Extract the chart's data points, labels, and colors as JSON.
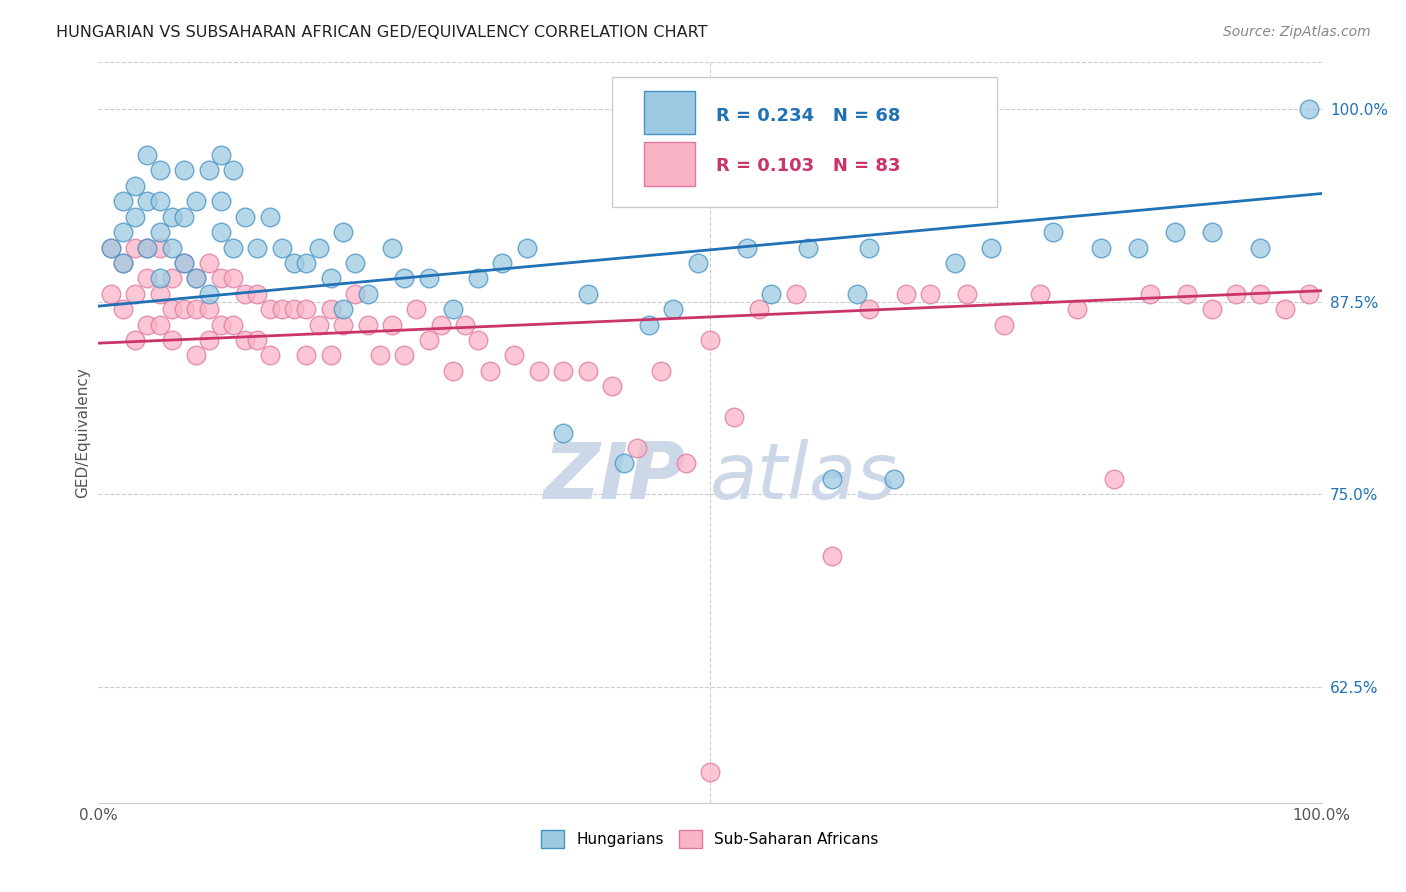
{
  "title": "HUNGARIAN VS SUBSAHARAN AFRICAN GED/EQUIVALENCY CORRELATION CHART",
  "source": "Source: ZipAtlas.com",
  "ylabel": "GED/Equivalency",
  "xlim": [
    0.0,
    1.0
  ],
  "ylim": [
    0.55,
    1.03
  ],
  "yticks": [
    0.625,
    0.75,
    0.875,
    1.0
  ],
  "ytick_labels": [
    "62.5%",
    "75.0%",
    "87.5%",
    "100.0%"
  ],
  "xticks": [
    0.0,
    0.1,
    0.2,
    0.3,
    0.4,
    0.5,
    0.6,
    0.7,
    0.8,
    0.9,
    1.0
  ],
  "xtick_labels": [
    "0.0%",
    "",
    "",
    "",
    "",
    "",
    "",
    "",
    "",
    "",
    "100.0%"
  ],
  "hungarian_color": "#9ecae1",
  "hungarian_edge": "#4292c6",
  "african_color": "#fbb4c6",
  "african_edge": "#de77a2",
  "blue_line_color": "#2171b5",
  "pink_line_color": "#c9346a",
  "watermark_color": "#ccd8e8",
  "R_hungarian": 0.234,
  "N_hungarian": 68,
  "R_african": 0.103,
  "N_african": 83,
  "blue_line_x0": 0.0,
  "blue_line_y0": 0.872,
  "blue_line_x1": 1.0,
  "blue_line_y1": 0.945,
  "pink_line_x0": 0.0,
  "pink_line_y0": 0.848,
  "pink_line_x1": 1.0,
  "pink_line_y1": 0.882,
  "hungarian_x": [
    0.01,
    0.02,
    0.02,
    0.02,
    0.03,
    0.03,
    0.04,
    0.04,
    0.04,
    0.05,
    0.05,
    0.05,
    0.05,
    0.06,
    0.06,
    0.07,
    0.07,
    0.07,
    0.08,
    0.08,
    0.09,
    0.09,
    0.1,
    0.1,
    0.1,
    0.11,
    0.11,
    0.12,
    0.13,
    0.14,
    0.15,
    0.16,
    0.17,
    0.18,
    0.19,
    0.2,
    0.2,
    0.21,
    0.22,
    0.24,
    0.25,
    0.27,
    0.29,
    0.31,
    0.33,
    0.35,
    0.38,
    0.4,
    0.43,
    0.45,
    0.47,
    0.49,
    0.53,
    0.55,
    0.58,
    0.6,
    0.62,
    0.63,
    0.65,
    0.7,
    0.73,
    0.78,
    0.82,
    0.85,
    0.88,
    0.91,
    0.95,
    0.99
  ],
  "hungarian_y": [
    0.91,
    0.94,
    0.92,
    0.9,
    0.95,
    0.93,
    0.97,
    0.94,
    0.91,
    0.96,
    0.94,
    0.92,
    0.89,
    0.93,
    0.91,
    0.96,
    0.93,
    0.9,
    0.94,
    0.89,
    0.96,
    0.88,
    0.97,
    0.94,
    0.92,
    0.96,
    0.91,
    0.93,
    0.91,
    0.93,
    0.91,
    0.9,
    0.9,
    0.91,
    0.89,
    0.92,
    0.87,
    0.9,
    0.88,
    0.91,
    0.89,
    0.89,
    0.87,
    0.89,
    0.9,
    0.91,
    0.79,
    0.88,
    0.77,
    0.86,
    0.87,
    0.9,
    0.91,
    0.88,
    0.91,
    0.76,
    0.88,
    0.91,
    0.76,
    0.9,
    0.91,
    0.92,
    0.91,
    0.91,
    0.92,
    0.92,
    0.91,
    1.0
  ],
  "african_x": [
    0.01,
    0.01,
    0.02,
    0.02,
    0.03,
    0.03,
    0.03,
    0.04,
    0.04,
    0.04,
    0.05,
    0.05,
    0.05,
    0.06,
    0.06,
    0.06,
    0.07,
    0.07,
    0.08,
    0.08,
    0.08,
    0.09,
    0.09,
    0.09,
    0.1,
    0.1,
    0.11,
    0.11,
    0.12,
    0.12,
    0.13,
    0.13,
    0.14,
    0.14,
    0.15,
    0.16,
    0.17,
    0.17,
    0.18,
    0.19,
    0.19,
    0.2,
    0.21,
    0.22,
    0.23,
    0.24,
    0.25,
    0.26,
    0.27,
    0.28,
    0.29,
    0.3,
    0.31,
    0.32,
    0.34,
    0.36,
    0.38,
    0.4,
    0.42,
    0.44,
    0.46,
    0.48,
    0.5,
    0.52,
    0.54,
    0.57,
    0.6,
    0.63,
    0.66,
    0.68,
    0.71,
    0.74,
    0.77,
    0.8,
    0.83,
    0.86,
    0.89,
    0.91,
    0.93,
    0.95,
    0.97,
    0.99,
    0.5
  ],
  "african_y": [
    0.91,
    0.88,
    0.9,
    0.87,
    0.91,
    0.88,
    0.85,
    0.91,
    0.89,
    0.86,
    0.91,
    0.88,
    0.86,
    0.89,
    0.87,
    0.85,
    0.9,
    0.87,
    0.89,
    0.87,
    0.84,
    0.9,
    0.87,
    0.85,
    0.89,
    0.86,
    0.89,
    0.86,
    0.88,
    0.85,
    0.88,
    0.85,
    0.87,
    0.84,
    0.87,
    0.87,
    0.87,
    0.84,
    0.86,
    0.87,
    0.84,
    0.86,
    0.88,
    0.86,
    0.84,
    0.86,
    0.84,
    0.87,
    0.85,
    0.86,
    0.83,
    0.86,
    0.85,
    0.83,
    0.84,
    0.83,
    0.83,
    0.83,
    0.82,
    0.78,
    0.83,
    0.77,
    0.85,
    0.8,
    0.87,
    0.88,
    0.71,
    0.87,
    0.88,
    0.88,
    0.88,
    0.86,
    0.88,
    0.87,
    0.76,
    0.88,
    0.88,
    0.87,
    0.88,
    0.88,
    0.87,
    0.88,
    0.57
  ]
}
